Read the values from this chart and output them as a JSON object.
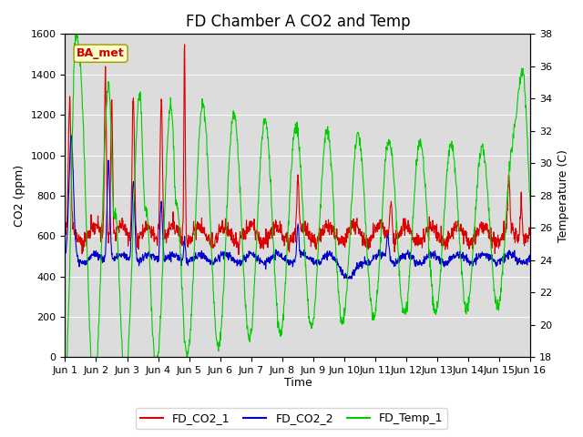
{
  "title": "FD Chamber A CO2 and Temp",
  "xlabel": "Time",
  "ylabel_left": "CO2 (ppm)",
  "ylabel_right": "Temperature (C)",
  "ylim_left": [
    0,
    1600
  ],
  "ylim_right": [
    18,
    38
  ],
  "yticks_left": [
    0,
    200,
    400,
    600,
    800,
    1000,
    1200,
    1400,
    1600
  ],
  "yticks_right": [
    18,
    20,
    22,
    24,
    26,
    28,
    30,
    32,
    34,
    36,
    38
  ],
  "xtick_labels": [
    "Jun 1",
    "Jun 2",
    "Jun 3",
    "Jun 4",
    "Jun 5",
    "Jun 6",
    "Jun 7",
    "Jun 8",
    "Jun 9",
    "Jun 10",
    "Jun 11",
    "Jun 12",
    "Jun 13",
    "Jun 14",
    "Jun 15",
    "Jun 16"
  ],
  "color_co2_1": "#dd0000",
  "color_co2_2": "#0000cc",
  "color_temp": "#00cc00",
  "bg_color": "#dcdcdc",
  "annotation_text": "BA_met",
  "annotation_bg": "#ffffcc",
  "annotation_border": "#999900",
  "legend_labels": [
    "FD_CO2_1",
    "FD_CO2_2",
    "FD_Temp_1"
  ],
  "title_fontsize": 12,
  "axis_fontsize": 9,
  "tick_fontsize": 8
}
